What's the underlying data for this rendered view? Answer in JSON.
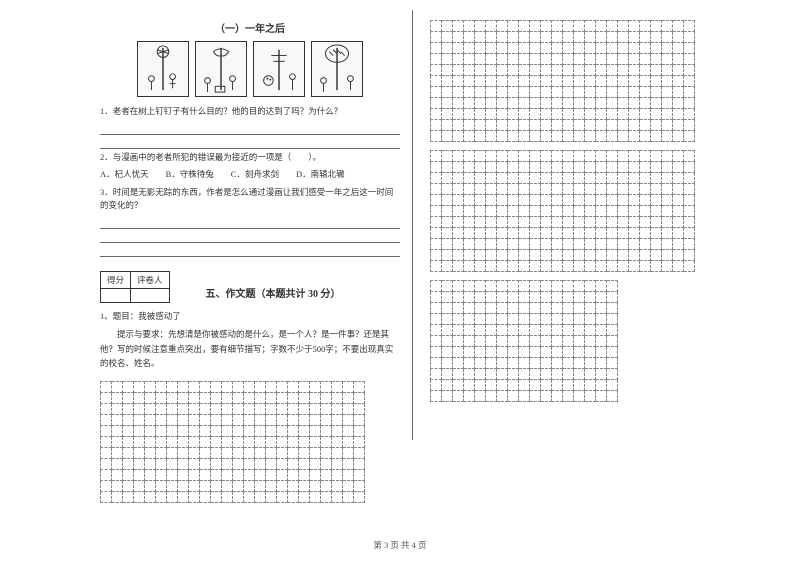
{
  "passage_title": "（一）一年之后",
  "q1": "1．老者在树上钉钉子有什么目的？他的目的达到了吗？为什么？",
  "q2_stem": "2．与漫画中的老者所犯的错误最为接近的一项是（　　）。",
  "q2_options": "A．杞人忧天　　B．守株待兔　　C．刻舟求剑　　D．南辕北辙",
  "q3": "3．时间是无影无踪的东西，作者是怎么通过漫画让我们感受一年之后这一时间的变化的？",
  "score_header1": "得分",
  "score_header2": "评卷人",
  "section5_title": "五、作文题（本题共计 30 分）",
  "essay_topic": "1、题目：我被感动了",
  "essay_prompt": "提示与要求：先想清楚你被感动的是什么，是一个人？是一件事？还是其他？写的时候注意重点突出，要有细节描写；字数不少于500字；不要出现真实的校名、姓名。",
  "footer": "第 3 页 共 4 页",
  "grid_left": {
    "rows": 11,
    "cols": 24
  },
  "grid_right_top": {
    "rows": 11,
    "cols": 24
  },
  "grid_right_mid": {
    "rows": 11,
    "cols": 24
  },
  "grid_right_bot": {
    "rows": 11,
    "cols": 17
  },
  "colors": {
    "text": "#333333",
    "line": "#666666",
    "dash": "#888888"
  }
}
